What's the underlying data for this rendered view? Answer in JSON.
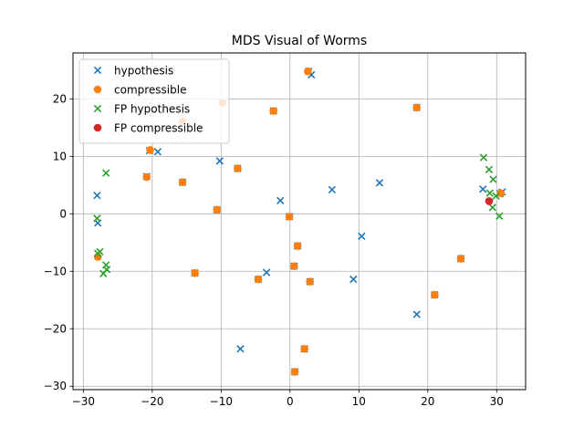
{
  "chart_data": {
    "type": "scatter",
    "title": "MDS Visual of Worms",
    "xlabel": "",
    "ylabel": "",
    "xlim": [
      -31.5,
      34.2
    ],
    "ylim": [
      -30.6,
      28.0
    ],
    "xticks": [
      -30,
      -20,
      -10,
      0,
      10,
      20,
      30
    ],
    "yticks": [
      -30,
      -20,
      -10,
      0,
      10,
      20
    ],
    "grid": true,
    "legend_position": "top-left",
    "series": [
      {
        "name": "hypothesis",
        "marker": "x",
        "color": "#1f77b4",
        "points": [
          {
            "x": -28.0,
            "y": 3.2
          },
          {
            "x": -27.9,
            "y": -1.6
          },
          {
            "x": -20.4,
            "y": 11.0
          },
          {
            "x": -19.2,
            "y": 10.8
          },
          {
            "x": -15.6,
            "y": 5.5
          },
          {
            "x": -20.8,
            "y": 6.5
          },
          {
            "x": -10.2,
            "y": 9.2
          },
          {
            "x": -7.6,
            "y": 7.9
          },
          {
            "x": -10.6,
            "y": 0.7
          },
          {
            "x": -13.8,
            "y": -10.3
          },
          {
            "x": -7.2,
            "y": -23.5
          },
          {
            "x": -4.6,
            "y": -11.4
          },
          {
            "x": -3.4,
            "y": -10.2
          },
          {
            "x": -1.4,
            "y": 2.3
          },
          {
            "x": -0.1,
            "y": -0.5
          },
          {
            "x": 0.6,
            "y": -9.1
          },
          {
            "x": 1.1,
            "y": -5.6
          },
          {
            "x": 0.7,
            "y": -27.5
          },
          {
            "x": 2.1,
            "y": -23.5
          },
          {
            "x": 2.9,
            "y": -11.8
          },
          {
            "x": -2.4,
            "y": 17.9
          },
          {
            "x": 2.7,
            "y": 24.8
          },
          {
            "x": 3.1,
            "y": 24.2
          },
          {
            "x": 6.1,
            "y": 4.2
          },
          {
            "x": 9.2,
            "y": -11.4
          },
          {
            "x": 10.4,
            "y": -3.9
          },
          {
            "x": 13.0,
            "y": 5.4
          },
          {
            "x": 18.4,
            "y": 18.5
          },
          {
            "x": 18.4,
            "y": -17.5
          },
          {
            "x": 21.0,
            "y": -14.1
          },
          {
            "x": 24.8,
            "y": -7.8
          },
          {
            "x": 28.0,
            "y": 4.3
          },
          {
            "x": 30.5,
            "y": 3.5
          },
          {
            "x": 30.8,
            "y": 3.8
          }
        ]
      },
      {
        "name": "compressible",
        "marker": "o",
        "color": "#ff7f0e",
        "points": [
          {
            "x": -27.9,
            "y": -7.5
          },
          {
            "x": -20.8,
            "y": 6.4
          },
          {
            "x": -20.3,
            "y": 11.1
          },
          {
            "x": -15.6,
            "y": 5.5
          },
          {
            "x": -15.6,
            "y": 16.1
          },
          {
            "x": -9.8,
            "y": 19.3
          },
          {
            "x": -7.6,
            "y": 7.9
          },
          {
            "x": -10.6,
            "y": 0.7
          },
          {
            "x": -13.8,
            "y": -10.3
          },
          {
            "x": -4.6,
            "y": -11.4
          },
          {
            "x": -2.4,
            "y": 17.9
          },
          {
            "x": -0.1,
            "y": -0.5
          },
          {
            "x": 0.6,
            "y": -9.1
          },
          {
            "x": 1.1,
            "y": -5.6
          },
          {
            "x": 0.7,
            "y": -27.5
          },
          {
            "x": 2.1,
            "y": -23.5
          },
          {
            "x": 2.9,
            "y": -11.8
          },
          {
            "x": 2.6,
            "y": 24.8
          },
          {
            "x": 18.4,
            "y": 18.5
          },
          {
            "x": 21.0,
            "y": -14.1
          },
          {
            "x": 24.8,
            "y": -7.8
          },
          {
            "x": 30.6,
            "y": 3.6
          }
        ]
      },
      {
        "name": "FP hypothesis",
        "marker": "x",
        "color": "#2ca02c",
        "points": [
          {
            "x": -28.0,
            "y": -0.8
          },
          {
            "x": -27.9,
            "y": -6.9
          },
          {
            "x": -27.6,
            "y": -6.6
          },
          {
            "x": -26.7,
            "y": 7.1
          },
          {
            "x": -26.7,
            "y": -8.9
          },
          {
            "x": -26.6,
            "y": -9.7
          },
          {
            "x": -27.1,
            "y": -10.4
          },
          {
            "x": 28.1,
            "y": 9.8
          },
          {
            "x": 28.9,
            "y": 7.7
          },
          {
            "x": 29.5,
            "y": 6.0
          },
          {
            "x": 29.0,
            "y": 3.6
          },
          {
            "x": 29.4,
            "y": 1.1
          },
          {
            "x": 29.9,
            "y": 3.1
          },
          {
            "x": 30.4,
            "y": -0.4
          }
        ]
      },
      {
        "name": "FP compressible",
        "marker": "o",
        "color": "#d62728",
        "points": [
          {
            "x": 28.9,
            "y": 2.2
          }
        ]
      }
    ]
  }
}
